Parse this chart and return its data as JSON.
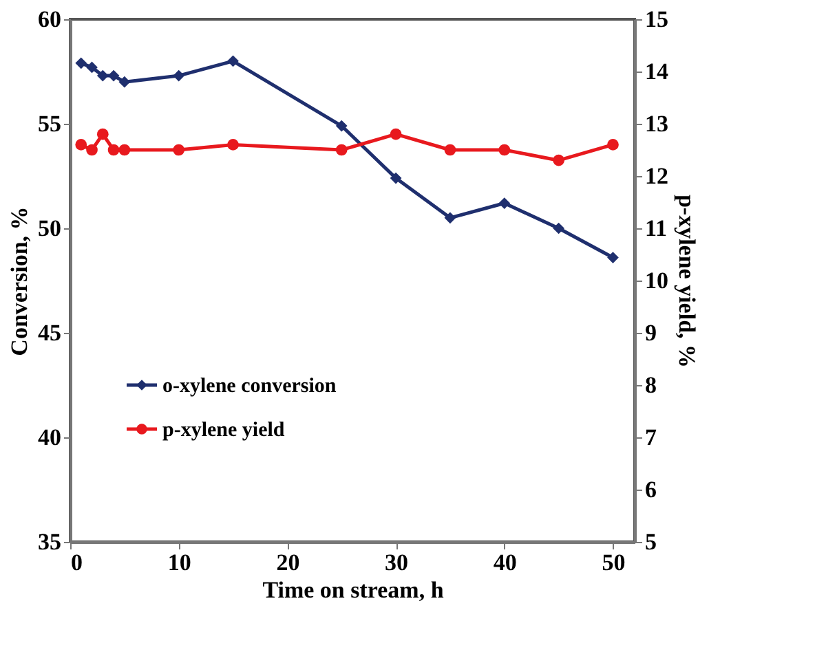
{
  "chart_data": {
    "type": "line",
    "xlabel": "Time on stream, h",
    "ylabel": "Conversion, %",
    "y2label": "p-xylene yield, %",
    "xlim": [
      0,
      52
    ],
    "xticks": [
      0,
      10,
      20,
      30,
      40,
      50
    ],
    "ylim": [
      35,
      60
    ],
    "yticks": [
      35,
      40,
      45,
      50,
      55,
      60
    ],
    "y2lim": [
      5,
      15
    ],
    "y2ticks": [
      5,
      6,
      7,
      8,
      9,
      10,
      11,
      12,
      13,
      14,
      15
    ],
    "grid": false,
    "legend": "bottom left",
    "series": [
      {
        "name": "o-xylene conversion",
        "color": "#1f2f6e",
        "marker": "diamond",
        "x": [
          1,
          2,
          3,
          4,
          5,
          10,
          15,
          25,
          30,
          35,
          40,
          45,
          50
        ],
        "values": [
          57.9,
          57.7,
          57.3,
          57.3,
          57.0,
          57.3,
          58.0,
          54.9,
          52.4,
          50.5,
          51.2,
          50.0,
          48.6
        ]
      },
      {
        "name": "p-xylene yield",
        "color": "#e8191e",
        "marker": "circle",
        "axis": "y2",
        "x": [
          1,
          2,
          3,
          4,
          5,
          10,
          15,
          25,
          30,
          35,
          40,
          45,
          50
        ],
        "values": [
          12.6,
          12.5,
          12.8,
          12.5,
          12.5,
          12.5,
          12.6,
          12.5,
          12.8,
          12.5,
          12.5,
          12.3,
          12.6
        ]
      }
    ]
  }
}
